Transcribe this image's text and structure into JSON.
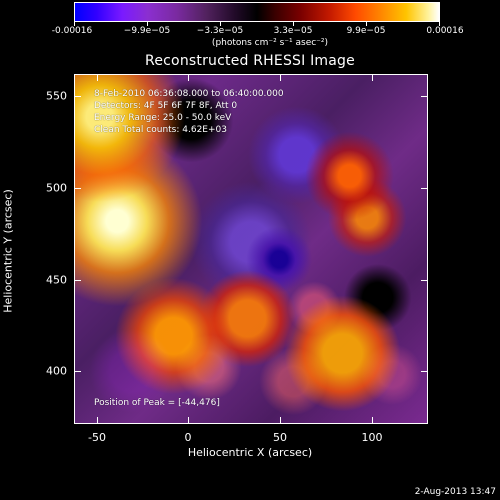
{
  "colorbar": {
    "labels": [
      "-0.00016",
      "−9.9e−05",
      "−3.3e−05",
      "3.3e−05",
      "9.9e−05",
      "0.00016"
    ],
    "units": "(photons cm⁻² s⁻¹ asec⁻²)"
  },
  "plot": {
    "title": "Reconstructed RHESSI Image",
    "info_lines": [
      "8-Feb-2010 06:36:08.000 to 06:40:00.000",
      "Detectors: 4F 5F 6F 7F 8F, Att 0",
      "Energy Range: 25.0 - 50.0 keV",
      "Clean    Total counts: 4.62E+03"
    ],
    "peak_text": "Position of Peak = [-44,476]",
    "x_ticks": [
      "-50",
      "0",
      "50",
      "100"
    ],
    "y_ticks": [
      "550",
      "500",
      "450",
      "400"
    ],
    "x_label": "Heliocentric X (arcsec)",
    "y_label": "Heliocentric Y (arcsec)"
  },
  "footer": {
    "timestamp": "2-Aug-2013 13:47"
  },
  "colors": {
    "background": "#000000",
    "text": "#ffffff"
  }
}
